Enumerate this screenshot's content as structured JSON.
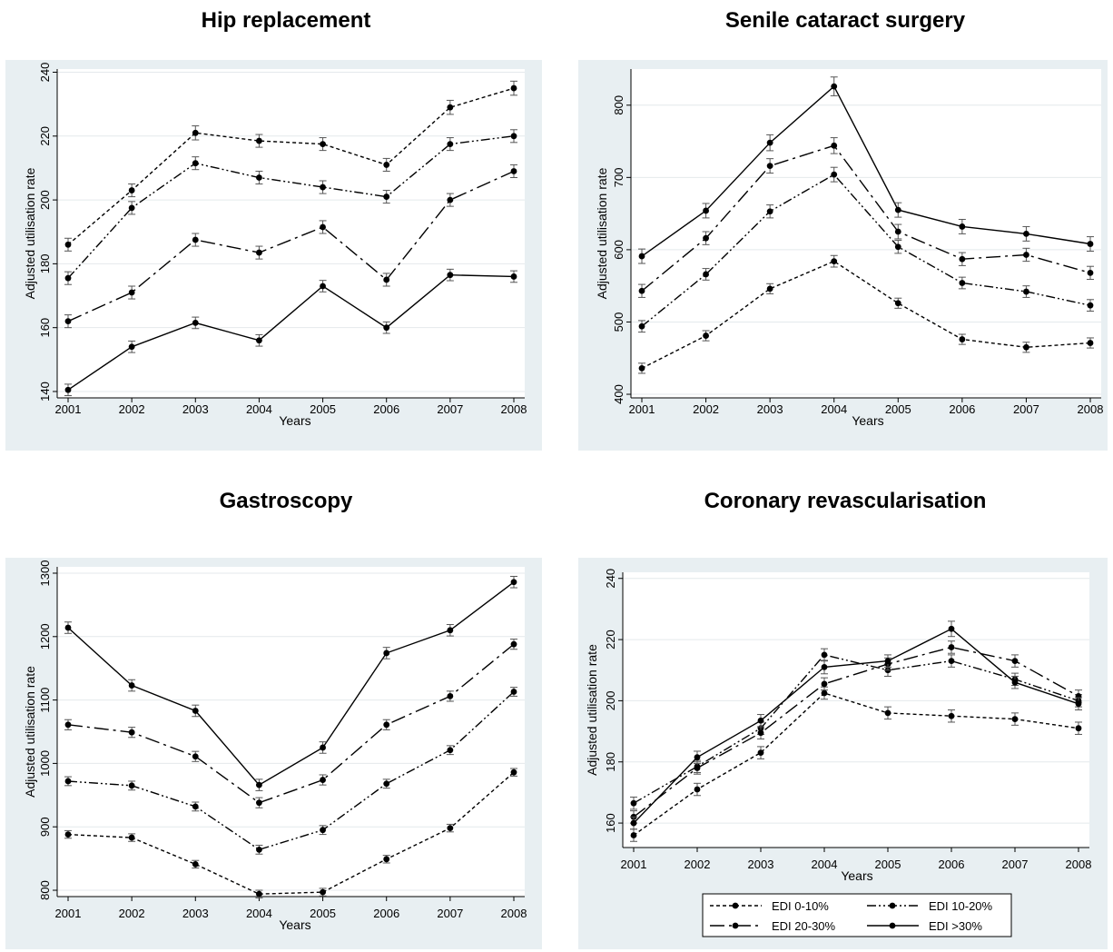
{
  "chart_data": [
    {
      "type": "line",
      "title": "Hip replacement",
      "xlabel": "Years",
      "ylabel": "Adjusted utilisation rate",
      "x": [
        2001,
        2002,
        2003,
        2004,
        2005,
        2006,
        2007,
        2008
      ],
      "ylim": [
        138,
        241
      ],
      "yticks": [
        140,
        160,
        180,
        200,
        220,
        240
      ],
      "series": [
        {
          "name": "EDI 0-10%",
          "values": [
            186,
            203,
            221,
            218.5,
            217.5,
            211,
            229,
            235
          ],
          "err": [
            2,
            2,
            2.2,
            2,
            2,
            2,
            2.2,
            2.2
          ]
        },
        {
          "name": "EDI 10-20%",
          "values": [
            175.5,
            197.5,
            211.5,
            207,
            204,
            201,
            217.5,
            220
          ],
          "err": [
            2,
            2,
            2,
            2,
            2,
            2,
            2,
            2
          ]
        },
        {
          "name": "EDI 20-30%",
          "values": [
            162,
            171,
            187.5,
            183.5,
            191.5,
            175,
            200,
            209
          ],
          "err": [
            2,
            2,
            2,
            2,
            2,
            2,
            2,
            2
          ]
        },
        {
          "name": "EDI >30%",
          "values": [
            140.5,
            154,
            161.5,
            156,
            173,
            160,
            176.5,
            176
          ],
          "err": [
            1.8,
            1.8,
            1.8,
            1.8,
            1.8,
            1.8,
            1.8,
            1.8
          ]
        }
      ]
    },
    {
      "type": "line",
      "title": "Senile cataract surgery",
      "xlabel": "Years",
      "ylabel": "Adjusted utilisation rate",
      "x": [
        2001,
        2002,
        2003,
        2004,
        2005,
        2006,
        2007,
        2008
      ],
      "ylim": [
        395,
        850
      ],
      "yticks": [
        400,
        500,
        600,
        700,
        800
      ],
      "series": [
        {
          "name": "EDI 0-10%",
          "values": [
            436,
            481,
            546,
            584,
            526,
            476,
            465,
            471
          ],
          "err": [
            7,
            7,
            7,
            8,
            7,
            7,
            7,
            7
          ]
        },
        {
          "name": "EDI 10-20%",
          "values": [
            494,
            566,
            653,
            704,
            604,
            554,
            542,
            523
          ],
          "err": [
            8,
            8,
            9,
            10,
            9,
            8,
            8,
            8
          ]
        },
        {
          "name": "EDI 20-30%",
          "values": [
            543,
            616,
            716,
            744,
            625,
            587,
            593,
            568
          ],
          "err": [
            9,
            9,
            10,
            11,
            10,
            9,
            9,
            9
          ]
        },
        {
          "name": "EDI >30%",
          "values": [
            591,
            654,
            748,
            826,
            655,
            632,
            622,
            608
          ],
          "err": [
            10,
            10,
            11,
            13,
            10,
            10,
            10,
            10
          ]
        }
      ]
    },
    {
      "type": "line",
      "title": "Gastroscopy",
      "xlabel": "Years",
      "ylabel": "Adjusted utilisation rate",
      "x": [
        2001,
        2002,
        2003,
        2004,
        2005,
        2006,
        2007,
        2008
      ],
      "ylim": [
        790,
        1310
      ],
      "yticks": [
        800,
        900,
        1000,
        1100,
        1200,
        1300
      ],
      "series": [
        {
          "name": "EDI 0-10%",
          "values": [
            888,
            883,
            841,
            794,
            797,
            849,
            898,
            986
          ],
          "err": [
            6,
            6,
            6,
            6,
            6,
            6,
            6,
            6
          ]
        },
        {
          "name": "EDI 10-20%",
          "values": [
            972,
            965,
            932,
            864,
            895,
            968,
            1021,
            1113
          ],
          "err": [
            7,
            7,
            7,
            7,
            7,
            7,
            7,
            7
          ]
        },
        {
          "name": "EDI 20-30%",
          "values": [
            1061,
            1049,
            1011,
            938,
            974,
            1061,
            1106,
            1188
          ],
          "err": [
            8,
            8,
            8,
            8,
            8,
            8,
            8,
            8
          ]
        },
        {
          "name": "EDI >30%",
          "values": [
            1214,
            1123,
            1083,
            966,
            1025,
            1174,
            1210,
            1286
          ],
          "err": [
            9,
            9,
            9,
            9,
            9,
            9,
            9,
            9
          ]
        }
      ]
    },
    {
      "type": "line",
      "title": "Coronary revascularisation",
      "xlabel": "Years",
      "ylabel": "Adjusted utilisation rate",
      "x": [
        2001,
        2002,
        2003,
        2004,
        2005,
        2006,
        2007,
        2008
      ],
      "ylim": [
        152,
        242
      ],
      "yticks": [
        160,
        180,
        200,
        220,
        240
      ],
      "series": [
        {
          "name": "EDI 0-10%",
          "values": [
            156,
            171,
            183,
            202.5,
            196,
            195,
            194,
            191
          ],
          "err": [
            2,
            2,
            2,
            2,
            2,
            2,
            2,
            2
          ]
        },
        {
          "name": "EDI 10-20%",
          "values": [
            166.5,
            178.5,
            191,
            215,
            210,
            213,
            207,
            200
          ],
          "err": [
            2,
            2,
            2,
            2,
            2,
            2,
            2,
            2
          ]
        },
        {
          "name": "EDI 20-30%",
          "values": [
            162,
            178,
            189.5,
            205.5,
            212,
            217.5,
            213,
            201.5
          ],
          "err": [
            2,
            2,
            2,
            2,
            2,
            2,
            2,
            2
          ]
        },
        {
          "name": "EDI >30%",
          "values": [
            160,
            181.5,
            193.5,
            211,
            213,
            223.5,
            206,
            199
          ],
          "err": [
            2,
            2,
            2,
            2.2,
            2,
            2.5,
            2,
            2
          ]
        }
      ]
    }
  ],
  "legend": {
    "placement": "bottom",
    "entries": [
      "EDI 0-10%",
      "EDI 10-20%",
      "EDI 20-30%",
      "EDI >30%"
    ]
  },
  "colors": {
    "panel_bg": "#e8eff2",
    "plot_bg": "#ffffff",
    "grid": "#e4e9ec",
    "line": "#000000",
    "errorbar": "#555555"
  }
}
